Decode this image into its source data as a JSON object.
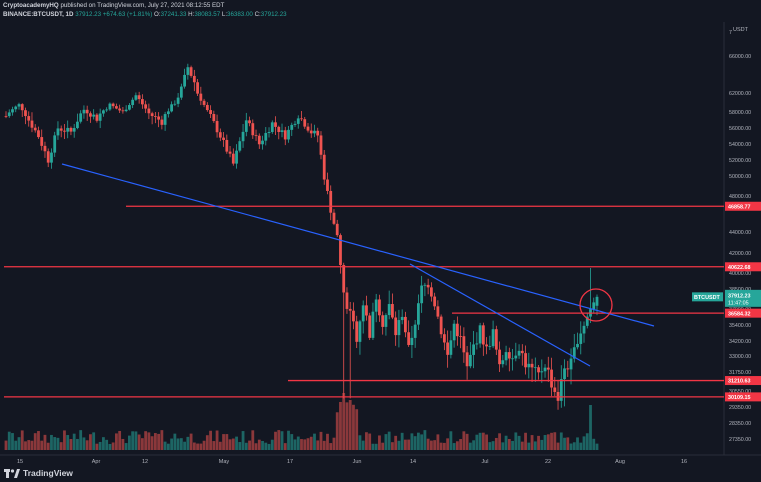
{
  "header": {
    "author": "CryptoacademyHQ",
    "published": "published on TradingView.com, July 27, 2021 08:12:55 EDT",
    "symbol": "BINANCE:BTCUSDT, 1D",
    "last": "37912.23",
    "change": "+674.63 (+1.81%)",
    "o_label": "O:",
    "o": "37241.33",
    "h_label": "H:",
    "h": "38083.57",
    "l_label": "L:",
    "l": "36383.00",
    "c_label": "C:",
    "c": "37912.23"
  },
  "brand": {
    "name": "TradingView"
  },
  "price_axis": {
    "currency": "USDT",
    "ticks": [
      "66000.00",
      "62000.00",
      "58000.00",
      "56000.00",
      "54000.00",
      "52000.00",
      "50000.00",
      "48000.00",
      "44000.00",
      "42000.00",
      "40000.00",
      "38500.00",
      "37000.00",
      "35400.00",
      "34200.00",
      "33000.00",
      "31750.00",
      "30550.00",
      "29350.00",
      "28350.00",
      "27350.00"
    ]
  },
  "time_axis": {
    "labels": [
      "15",
      "Apr",
      "12",
      "May",
      "17",
      "Jun",
      "14",
      "Jul",
      "22",
      "Aug",
      "16"
    ]
  },
  "price_labels": [
    {
      "text": "46858.77",
      "color": "#f23645"
    },
    {
      "text": "40622.68",
      "color": "#f23645"
    },
    {
      "text": "BTCUSDT",
      "color": "#26a69a"
    },
    {
      "text": "37912.23",
      "color": "#26a69a"
    },
    {
      "text": "11:47:05",
      "color": "#26a69a"
    },
    {
      "text": "36584.32",
      "color": "#f23645"
    },
    {
      "text": "31210.63",
      "color": "#f23645"
    },
    {
      "text": "30109.15",
      "color": "#f23645"
    }
  ],
  "colors": {
    "up": "#26a69a",
    "down": "#ef5350",
    "trend": "#2962ff",
    "level": "#f23645",
    "bg": "#131722"
  },
  "chart_data": {
    "type": "candlestick",
    "symbol": "BINANCE:BTCUSDT",
    "interval": "1D",
    "y_axis_ticks": [
      66000,
      62000,
      58000,
      56000,
      54000,
      52000,
      50000,
      48000,
      44000,
      42000,
      40000,
      38500,
      37000,
      35400,
      34200,
      33000,
      31750,
      30550,
      29350,
      28350,
      27350
    ],
    "x_axis_labels": [
      "15",
      "Apr",
      "12",
      "May",
      "17",
      "Jun",
      "14",
      "Jul",
      "22",
      "Aug",
      "16"
    ],
    "horizontal_levels": [
      46858.77,
      40622.68,
      36584.32,
      31210.63,
      30109.15
    ],
    "last_price": 37912.23,
    "ohlc_last": {
      "open": 37241.33,
      "high": 38083.57,
      "low": 36383.0,
      "close": 37912.23
    }
  }
}
